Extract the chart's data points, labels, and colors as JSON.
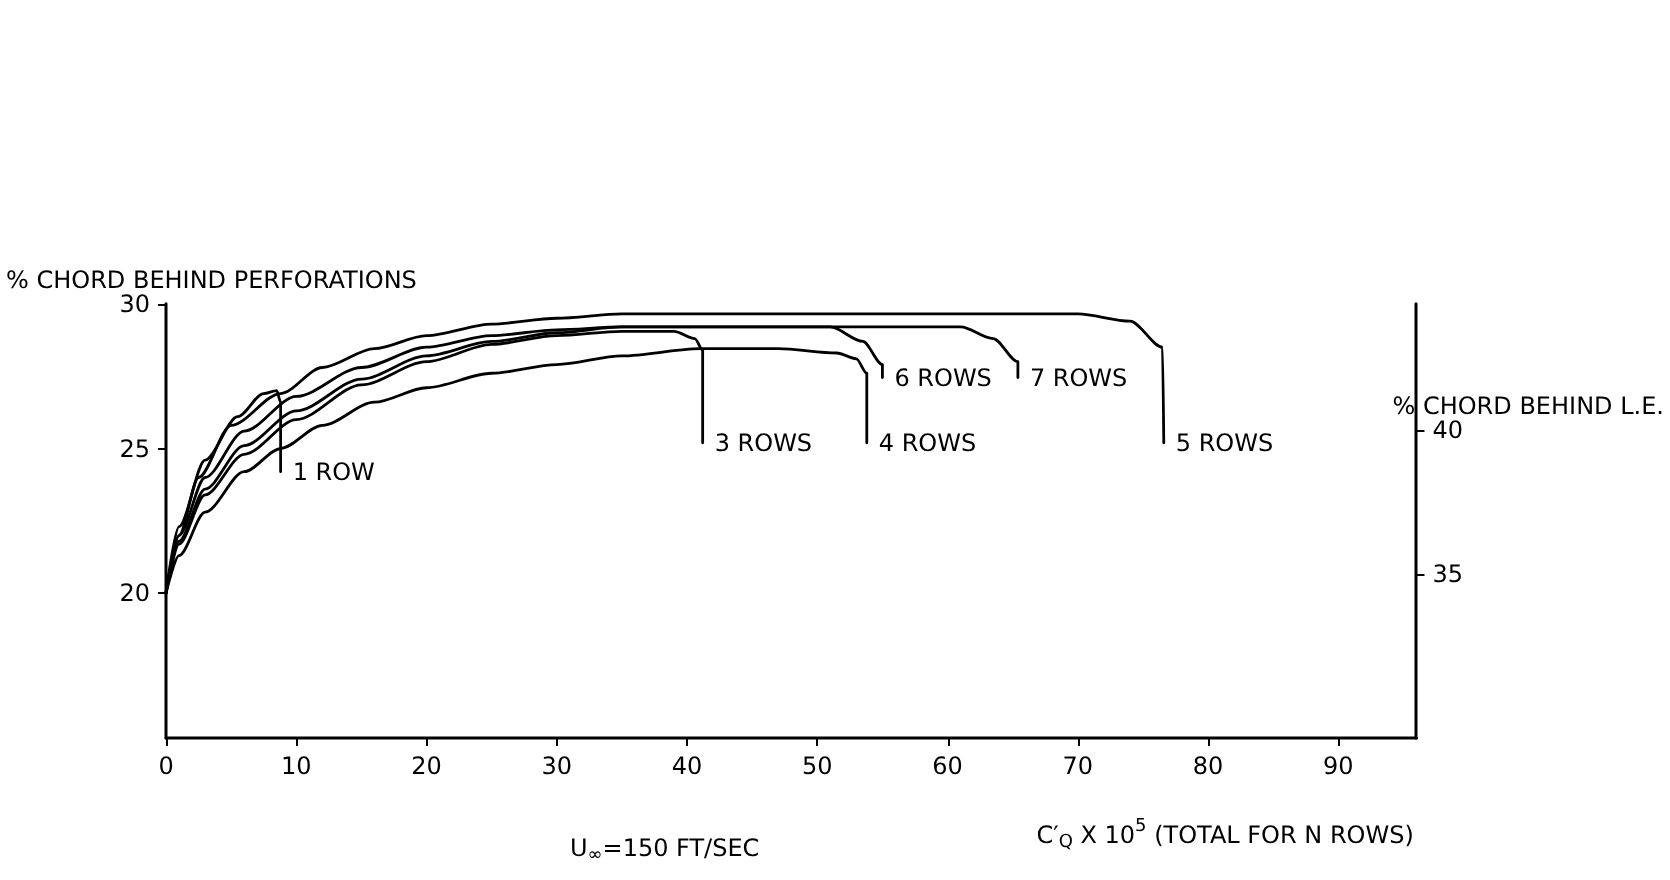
{
  "chart_data": {
    "type": "line",
    "xlabel": "C′$_{Q}$ X 10$^{5}$ (TOTAL FOR N ROWS)",
    "ylabel": "% CHORD BEHIND PERFORATIONS",
    "y2label": "% CHORD BEHIND L.E.",
    "annotations": [
      "U$_{∞}$=150 FT/SEC"
    ],
    "xlim": [
      0,
      96
    ],
    "xticks": [
      0,
      10,
      20,
      30,
      40,
      50,
      60,
      70,
      80,
      90
    ],
    "ylim": [
      15,
      30
    ],
    "yticks": [
      20,
      25,
      30
    ],
    "y2lim": [
      29.35,
      44.35
    ],
    "y2ticks": [
      35,
      40
    ],
    "grid": false,
    "legend": false,
    "marker": "none",
    "line_style": "solid",
    "series": [
      {
        "name": "1 ROW",
        "color": "#000000",
        "x": [
          0,
          1,
          3,
          5.5,
          7.5,
          8.5,
          8.8,
          8.8
        ],
        "values": [
          20,
          22.3,
          24.6,
          26.1,
          26.9,
          27.0,
          26.6,
          24.2
        ]
      },
      {
        "name": "3 ROWS",
        "color": "#000000",
        "x": [
          0,
          1,
          3,
          6,
          10,
          15,
          20,
          25,
          30,
          35,
          39,
          40.6,
          41.2,
          41.2
        ],
        "values": [
          20,
          21.7,
          23.4,
          24.8,
          26.0,
          27.2,
          28.0,
          28.6,
          28.9,
          29.05,
          29.05,
          28.8,
          28.4,
          25.2
        ]
      },
      {
        "name": "4 ROWS",
        "color": "#000000",
        "x": [
          0,
          1,
          3,
          6,
          8.8,
          12,
          16,
          20,
          25,
          30,
          35,
          41,
          47,
          51.5,
          53,
          53.8,
          53.8
        ],
        "values": [
          20,
          21.3,
          22.8,
          24.2,
          25.0,
          25.8,
          26.6,
          27.1,
          27.6,
          27.9,
          28.2,
          28.45,
          28.45,
          28.3,
          28.1,
          27.6,
          25.2
        ]
      },
      {
        "name": "6 ROWS",
        "color": "#000000",
        "x": [
          0,
          1,
          3,
          6,
          10,
          15,
          20,
          25,
          30,
          35,
          51,
          53.5,
          55,
          55
        ],
        "values": [
          20,
          21.8,
          23.6,
          25.1,
          26.3,
          27.4,
          28.2,
          28.7,
          29.0,
          29.2,
          29.2,
          28.7,
          27.9,
          27.45
        ]
      },
      {
        "name": "7 ROWS",
        "color": "#000000",
        "x": [
          0,
          1,
          3,
          6,
          10,
          15,
          20,
          25,
          30,
          35,
          61,
          63.5,
          65.4,
          65.4
        ],
        "values": [
          20,
          22,
          24,
          25.6,
          26.8,
          27.8,
          28.5,
          28.9,
          29.1,
          29.2,
          29.2,
          28.8,
          28.0,
          27.45
        ]
      },
      {
        "name": "5 ROWS",
        "color": "#000000",
        "x": [
          0,
          1,
          2.5,
          5,
          8.8,
          12,
          16,
          20,
          25,
          30,
          35,
          70,
          74,
          76.5,
          76.6
        ],
        "values": [
          20,
          22,
          24,
          25.8,
          26.9,
          27.8,
          28.45,
          28.9,
          29.3,
          29.5,
          29.65,
          29.65,
          29.4,
          28.5,
          25.2
        ]
      }
    ]
  }
}
